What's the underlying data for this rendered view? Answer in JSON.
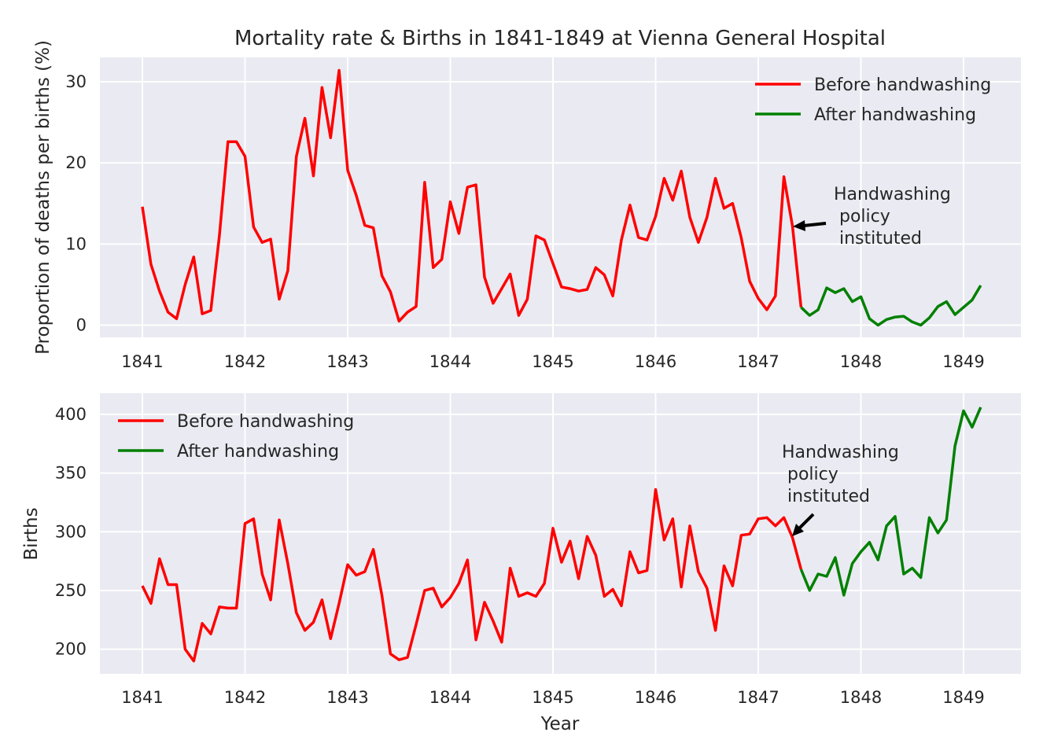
{
  "chart_data": [
    {
      "type": "line",
      "title": "Mortality rate & Births in 1841-1849 at Vienna General Hospital",
      "xlabel": "",
      "ylabel": "Proportion of deaths per births (%)",
      "xlim": [
        "1840-08",
        "1849-06"
      ],
      "ylim": [
        -1.5,
        33
      ],
      "x_ticks": [
        "1841",
        "1842",
        "1843",
        "1844",
        "1845",
        "1846",
        "1847",
        "1848",
        "1849"
      ],
      "y_ticks": [
        0,
        10,
        20,
        30
      ],
      "grid": true,
      "legend_position": "top-right",
      "annotation": {
        "text_lines": [
          "Handwashing",
          " policy",
          " instituted"
        ],
        "points_to": [
          "1847-05",
          12.2
        ],
        "text_at": [
          "1847-10",
          15.5
        ]
      },
      "series": [
        {
          "name": "Before handwashing",
          "color": "#ff0000",
          "x_start": "1841-01",
          "values": [
            14.6,
            7.5,
            4.2,
            1.6,
            0.8,
            5.0,
            8.4,
            1.4,
            1.8,
            11.0,
            22.6,
            22.6,
            20.8,
            12.1,
            10.2,
            10.6,
            3.2,
            6.7,
            20.8,
            25.5,
            18.4,
            29.3,
            23.1,
            31.4,
            19.1,
            16.0,
            12.3,
            12.0,
            6.1,
            4.1,
            0.5,
            1.6,
            2.3,
            17.6,
            7.1,
            8.1,
            15.2,
            11.3,
            17.0,
            17.3,
            5.9,
            2.7,
            4.5,
            6.3,
            1.2,
            3.2,
            11.0,
            10.5,
            7.6,
            4.7,
            4.5,
            4.2,
            4.4,
            7.1,
            6.2,
            3.6,
            10.5,
            14.8,
            10.8,
            10.5,
            13.4,
            18.1,
            15.4,
            19.0,
            13.3,
            10.2,
            13.3,
            18.1,
            14.4,
            15.0,
            10.8,
            5.4,
            3.3,
            1.9,
            3.6,
            18.3,
            12.2,
            2.2
          ],
          "points_count": 78
        },
        {
          "name": "After handwashing",
          "color": "#008000",
          "x_start": "1847-06",
          "values": [
            2.2,
            1.2,
            1.9,
            4.6,
            4.0,
            4.5,
            2.9,
            3.5,
            0.8,
            0.0,
            0.7,
            1.0,
            1.1,
            0.4,
            0.0,
            0.9,
            2.3,
            2.9,
            1.3,
            2.2,
            3.1,
            4.9
          ],
          "points_count": 22
        }
      ]
    },
    {
      "type": "line",
      "title": "",
      "xlabel": "Year",
      "ylabel": "Births",
      "xlim": [
        "1840-08",
        "1849-06"
      ],
      "ylim": [
        179,
        418
      ],
      "x_ticks": [
        "1841",
        "1842",
        "1843",
        "1844",
        "1845",
        "1846",
        "1847",
        "1848",
        "1849"
      ],
      "y_ticks": [
        200,
        250,
        300,
        350,
        400
      ],
      "grid": true,
      "legend_position": "top-left",
      "annotation": {
        "text_lines": [
          "Handwashing",
          " policy",
          " instituted"
        ],
        "points_to": [
          "1847-05",
          296
        ],
        "text_at": [
          "1847-05",
          350
        ]
      },
      "series": [
        {
          "name": "Before handwashing",
          "color": "#ff0000",
          "x_start": "1841-01",
          "values": [
            254,
            239,
            277,
            255,
            255,
            200,
            190,
            222,
            213,
            236,
            235,
            235,
            307,
            311,
            264,
            242,
            310,
            273,
            231,
            216,
            223,
            242,
            209,
            239,
            272,
            263,
            266,
            285,
            246,
            196,
            191,
            193,
            221,
            250,
            252,
            236,
            244,
            256,
            276,
            208,
            240,
            224,
            206,
            269,
            245,
            248,
            245,
            256,
            303,
            274,
            292,
            260,
            296,
            280,
            245,
            251,
            237,
            283,
            265,
            267,
            336,
            293,
            311,
            253,
            305,
            266,
            252,
            216,
            271,
            254,
            297,
            298,
            311,
            312,
            305,
            312,
            295,
            268
          ],
          "points_count": 78
        },
        {
          "name": "After handwashing",
          "color": "#008000",
          "x_start": "1847-06",
          "values": [
            268,
            250,
            264,
            262,
            278,
            246,
            273,
            283,
            291,
            276,
            305,
            313,
            264,
            269,
            261,
            312,
            299,
            310,
            373,
            403,
            389,
            406
          ],
          "points_count": 22
        }
      ]
    }
  ]
}
